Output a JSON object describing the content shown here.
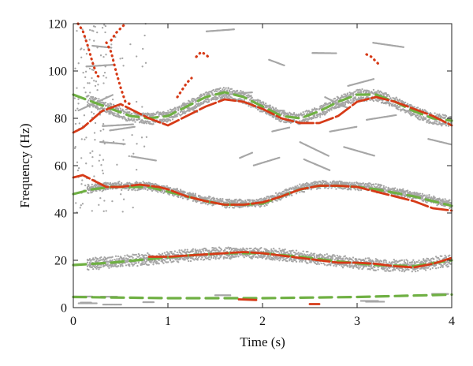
{
  "chart_data": {
    "type": "line",
    "xlabel": "Time (s)",
    "ylabel": "Frequency (Hz)",
    "xlim": [
      0,
      4
    ],
    "ylim": [
      0,
      120
    ],
    "xticks": [
      0,
      1,
      2,
      3,
      4
    ],
    "yticks": [
      0,
      20,
      40,
      60,
      80,
      100,
      120
    ],
    "grid": false,
    "legend": "none",
    "colors": {
      "scatter": "#a6a6a6",
      "red": "#d63a17",
      "green": "#6fb043"
    },
    "series": [
      {
        "style": "green-dashed",
        "x": [
          0,
          0.2,
          0.4,
          0.6,
          0.8,
          1.0,
          1.2,
          1.4,
          1.6,
          1.8,
          2.0,
          2.2,
          2.4,
          2.6,
          2.8,
          3.0,
          3.2,
          3.4,
          3.6,
          3.8,
          4.0
        ],
        "y": [
          90,
          87,
          84,
          81,
          80,
          81,
          85,
          89,
          91,
          89,
          85,
          81,
          80,
          83,
          87,
          90,
          90,
          87,
          83,
          80,
          79
        ]
      },
      {
        "style": "red-dashed",
        "x": [
          0,
          0.1,
          0.3,
          0.5,
          0.6,
          0.8,
          1.0,
          1.2,
          1.4,
          1.6,
          1.8,
          2.0,
          2.2,
          2.4,
          2.6,
          2.8,
          3.0,
          3.2,
          3.4,
          3.6,
          3.8,
          4.0
        ],
        "y": [
          74,
          76,
          83,
          86,
          84,
          80,
          77,
          81,
          85,
          88,
          87,
          84,
          80,
          78,
          78,
          81,
          87,
          89,
          87,
          84,
          81,
          77
        ]
      },
      {
        "style": "green-dashed",
        "x": [
          0,
          0.2,
          0.4,
          0.6,
          0.8,
          1.0,
          1.2,
          1.4,
          1.6,
          1.8,
          2.0,
          2.2,
          2.4,
          2.6,
          2.8,
          3.0,
          3.2,
          3.4,
          3.6,
          3.8,
          4.0
        ],
        "y": [
          48,
          50,
          51,
          51,
          51,
          49,
          47,
          45,
          43.5,
          43.5,
          44,
          47,
          50,
          51.5,
          51.5,
          51,
          50,
          48.5,
          47,
          45,
          43
        ]
      },
      {
        "style": "red-dashed",
        "x": [
          0,
          0.1,
          0.2,
          0.35,
          0.5,
          0.7,
          0.9,
          1.0,
          1.2,
          1.4,
          1.6,
          1.8,
          2.0,
          2.2,
          2.4,
          2.6,
          2.8,
          3.0,
          3.2,
          3.4,
          3.6,
          3.8,
          4.0
        ],
        "y": [
          55,
          56,
          54,
          51,
          51,
          52,
          51,
          50,
          47,
          45,
          43.5,
          43.5,
          44.5,
          47,
          50,
          51.5,
          51.5,
          51,
          49,
          47,
          45,
          42,
          41
        ]
      },
      {
        "style": "green-dashed",
        "x": [
          0,
          0.4,
          0.8,
          1.2,
          1.6,
          2.0,
          2.4,
          2.8,
          3.2,
          3.6,
          4.0
        ],
        "y": [
          18,
          19,
          20.5,
          22,
          23,
          23,
          21.5,
          19.5,
          18,
          17.5,
          20
        ]
      },
      {
        "style": "red-dashed",
        "x": [
          0.8,
          1.0,
          1.2,
          1.4,
          1.6,
          1.8,
          2.0,
          2.2,
          2.4,
          2.6,
          2.8,
          3.0,
          3.2,
          3.4,
          3.6,
          3.8,
          4.0
        ],
        "y": [
          21.5,
          21.5,
          22,
          22.5,
          23,
          23.5,
          23,
          22,
          21,
          20,
          19,
          19,
          18.5,
          17.5,
          17,
          18.5,
          21
        ]
      },
      {
        "style": "green-dashed",
        "x": [
          0,
          1.0,
          2.0,
          3.0,
          4.0
        ],
        "y": [
          4.5,
          4.0,
          4.0,
          4.5,
          5.5
        ]
      },
      {
        "style": "red-dashed",
        "x": [
          1.75,
          1.95
        ],
        "y": [
          3.5,
          3.2
        ]
      },
      {
        "style": "red-dashed",
        "x": [
          2.5,
          2.6
        ],
        "y": [
          1.5,
          1.5
        ]
      },
      {
        "style": "red-dotted",
        "x": [
          0.05,
          0.1,
          0.15,
          0.2,
          0.25,
          0.3
        ],
        "y": [
          120,
          117,
          111,
          104,
          98,
          97
        ]
      },
      {
        "style": "red-dotted",
        "x": [
          0.35,
          0.4,
          0.45,
          0.5,
          0.55,
          0.6
        ],
        "y": [
          112,
          108,
          100,
          93,
          87,
          86
        ]
      },
      {
        "style": "red-dotted",
        "x": [
          0.4,
          0.45,
          0.5,
          0.55
        ],
        "y": [
          113,
          116,
          118,
          120
        ]
      },
      {
        "style": "red-dotted",
        "x": [
          1.1,
          1.15,
          1.2,
          1.25
        ],
        "y": [
          89,
          92,
          95,
          97
        ]
      },
      {
        "style": "red-dotted",
        "x": [
          1.3,
          1.35,
          1.4,
          1.45
        ],
        "y": [
          106,
          108,
          107,
          105
        ]
      },
      {
        "style": "red-dotted",
        "x": [
          3.1,
          3.15,
          3.2,
          3.25
        ],
        "y": [
          107,
          106,
          104,
          102
        ]
      }
    ]
  }
}
